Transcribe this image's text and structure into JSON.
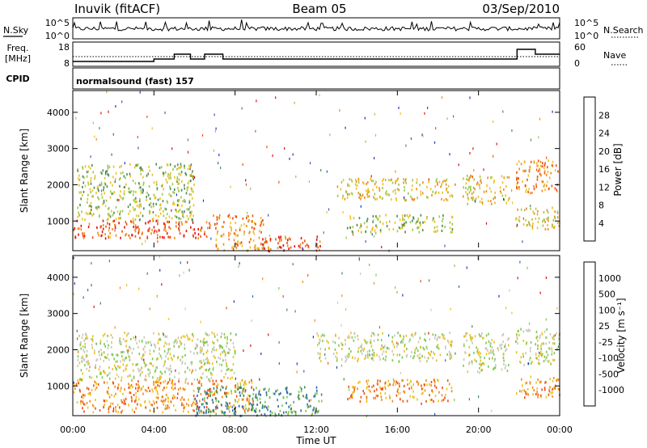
{
  "header": {
    "station": "Inuvik (fitACF)",
    "beam": "Beam 05",
    "date": "03/Sep/2010"
  },
  "noise_panel": {
    "left_label": "N.Sky",
    "right_label": "N.Search",
    "left_ticks": [
      "10^5",
      "10^0"
    ],
    "right_ticks": [
      "10^5",
      "10^0"
    ]
  },
  "freq_panel": {
    "left_label_1": "Freq.",
    "left_label_2": "[MHz]",
    "right_label": "Nave",
    "left_ticks": [
      "18",
      "8"
    ],
    "right_ticks": [
      "60",
      "0"
    ]
  },
  "cpid_panel": {
    "label": "CPID",
    "program": "normalsound (fast) 157"
  },
  "power_panel": {
    "ylabel": "Slant Range [km]",
    "yticks": [
      "4000",
      "3000",
      "2000",
      "1000"
    ],
    "colorbar_label": "Power [dB]",
    "colorbar_ticks": [
      "28",
      "24",
      "20",
      "16",
      "12",
      "8",
      "4"
    ],
    "colors": [
      "#2030d0",
      "#3a5fb0",
      "#4a8a5a",
      "#9cc850",
      "#f0c020",
      "#f08c20",
      "#f05010",
      "#e01010"
    ]
  },
  "velocity_panel": {
    "ylabel": "Slant Range [km]",
    "yticks": [
      "4000",
      "3000",
      "2000",
      "1000"
    ],
    "colorbar_label": "Velocity [m s⁻¹]",
    "colorbar_ticks": [
      "1000",
      "500",
      "100",
      "25",
      "-25",
      "-100",
      "-500",
      "-1000"
    ],
    "colors": [
      "#1c3ca0",
      "#2f6ab2",
      "#3c8a5a",
      "#80c850",
      "#c8c8c0",
      "#f0c020",
      "#f08c20",
      "#f05010",
      "#e01010"
    ]
  },
  "x_axis": {
    "label": "Time UT",
    "ticks": [
      "00:00",
      "04:00",
      "08:00",
      "12:00",
      "16:00",
      "20:00",
      "00:00"
    ]
  },
  "chart_data": [
    {
      "type": "line",
      "title": "N.Sky / N.Search",
      "x_range": [
        "00:00",
        "24:00"
      ],
      "y_scale": "log",
      "ylim": [
        1,
        100000
      ]
    },
    {
      "type": "line",
      "title": "Freq. / Nave",
      "x_range": [
        "00:00",
        "24:00"
      ],
      "ylim_freq_mhz": [
        8,
        18
      ],
      "ylim_nave": [
        0,
        60
      ],
      "frequency_steps": [
        {
          "start_h": 0,
          "end_h": 4.0,
          "mhz": 10
        },
        {
          "start_h": 4.0,
          "end_h": 5.0,
          "mhz": 11
        },
        {
          "start_h": 5.0,
          "end_h": 5.8,
          "mhz": 13
        },
        {
          "start_h": 5.8,
          "end_h": 6.5,
          "mhz": 11
        },
        {
          "start_h": 6.5,
          "end_h": 7.4,
          "mhz": 13
        },
        {
          "start_h": 7.4,
          "end_h": 21.9,
          "mhz": 11
        },
        {
          "start_h": 21.9,
          "end_h": 22.8,
          "mhz": 15
        },
        {
          "start_h": 22.8,
          "end_h": 24.0,
          "mhz": 13
        }
      ]
    },
    {
      "type": "heatmap",
      "title": "Power [dB]",
      "x_range_h": [
        0,
        24
      ],
      "ylim": [
        180,
        4600
      ],
      "zlim": [
        0,
        32
      ],
      "regions": [
        {
          "t0": 0.0,
          "t1": 7.0,
          "r0": 550,
          "r1": 1050,
          "level": 6
        },
        {
          "t0": 7.0,
          "t1": 9.5,
          "r0": 200,
          "r1": 1200,
          "level": 5
        },
        {
          "t0": 9.3,
          "t1": 12.3,
          "r0": 200,
          "r1": 600,
          "level": 6
        },
        {
          "t0": 0.2,
          "t1": 6.0,
          "r0": 1050,
          "r1": 2600,
          "level": 3
        },
        {
          "t0": 13.0,
          "t1": 18.7,
          "r0": 1600,
          "r1": 2200,
          "level": 4
        },
        {
          "t0": 13.5,
          "t1": 18.7,
          "r0": 700,
          "r1": 1200,
          "level": 3
        },
        {
          "t0": 19.2,
          "t1": 21.5,
          "r0": 1500,
          "r1": 2300,
          "level": 4
        },
        {
          "t0": 21.8,
          "t1": 24.0,
          "r0": 1800,
          "r1": 2700,
          "level": 5
        },
        {
          "t0": 21.8,
          "t1": 24.0,
          "r0": 800,
          "r1": 1400,
          "level": 4
        }
      ]
    },
    {
      "type": "heatmap",
      "title": "Velocity [m s⁻¹]",
      "x_range_h": [
        0,
        24
      ],
      "ylim": [
        180,
        4600
      ],
      "zlim": [
        -1000,
        1000
      ],
      "regions": [
        {
          "t0": 0.0,
          "t1": 9.0,
          "r0": 300,
          "r1": 1200,
          "level": 6
        },
        {
          "t0": 6.0,
          "t1": 12.3,
          "r0": 200,
          "r1": 1000,
          "level": 2
        },
        {
          "t0": 0.2,
          "t1": 8.0,
          "r0": 1200,
          "r1": 2500,
          "level": 4
        },
        {
          "t0": 12.0,
          "t1": 18.7,
          "r0": 1700,
          "r1": 2500,
          "level": 4
        },
        {
          "t0": 13.5,
          "t1": 18.7,
          "r0": 600,
          "r1": 1200,
          "level": 6
        },
        {
          "t0": 19.2,
          "t1": 21.5,
          "r0": 1400,
          "r1": 2500,
          "level": 4
        },
        {
          "t0": 21.8,
          "t1": 24.0,
          "r0": 1600,
          "r1": 2600,
          "level": 4
        },
        {
          "t0": 21.8,
          "t1": 24.0,
          "r0": 700,
          "r1": 1300,
          "level": 6
        }
      ]
    }
  ]
}
